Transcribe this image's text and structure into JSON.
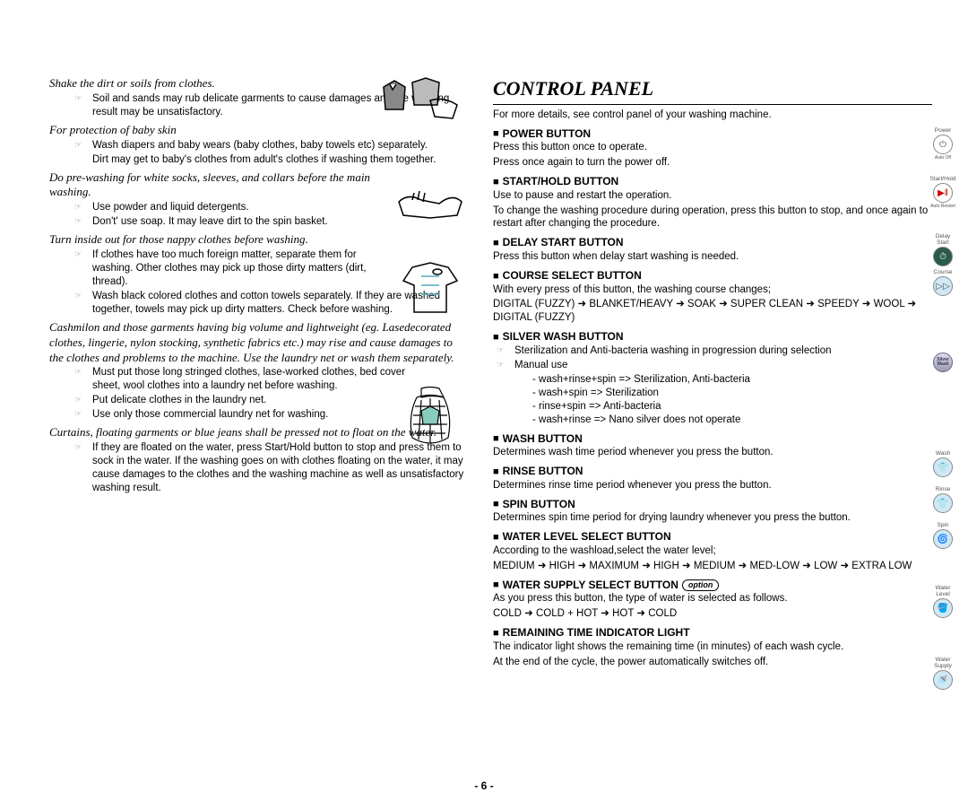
{
  "page_number": "- 6 -",
  "left": {
    "sections": [
      {
        "heading": "Shake the dirt or soils from clothes.",
        "bullets": [
          "Soil and sands may rub delicate garments to cause damages and the washing result may be unsatisfactory."
        ]
      },
      {
        "heading": "For protection of baby skin",
        "bullets": [
          "Wash diapers and baby wears (baby clothes, baby towels etc) separately."
        ],
        "after": "Dirt may get to baby's clothes from adult's clothes if washing them together."
      },
      {
        "heading": "Do pre-washing for white socks, sleeves, and collars before the main washing.",
        "bullets": [
          "Use powder and liquid detergents.",
          "Don't' use soap. It may leave dirt to the spin basket."
        ]
      },
      {
        "heading": "Turn inside out for those nappy clothes before washing.",
        "bullets": [
          "If clothes have too much foreign matter, separate them for washing. Other clothes may pick up those dirty matters (dirt, thread).",
          "Wash black colored clothes and cotton towels separately. If they are washed together, towels may pick up dirty matters. Check before washing."
        ]
      },
      {
        "heading": "Cashmilon and those garments having big volume and lightweight (eg. Lasedecorated clothes, lingerie, nylon stocking, synthetic fabrics etc.) may rise and cause damages to the clothes and problems to the machine. Use the laundry net or wash them separately.",
        "bullets": [
          "Must put those long stringed clothes, lase-worked clothes, bed cover sheet, wool clothes into a laundry net before washing.",
          "Put delicate clothes in the laundry net.",
          "Use only those commercial laundry net for washing."
        ]
      },
      {
        "heading": "Curtains, floating garments or blue jeans shall be pressed not to float on the water.",
        "bullets": [
          "If they are floated on the water, press Start/Hold button to stop and press them to sock in the water. If the washing goes on with clothes floating on the water, it may cause damages to the clothes and the washing machine as well as unsatisfactory washing result."
        ]
      }
    ]
  },
  "right": {
    "title": "CONTROL PANEL",
    "intro": "For more details, see control panel of your washing machine.",
    "buttons": [
      {
        "name": "POWER BUTTON",
        "desc": [
          "Press this button once to operate.",
          "Press once again to turn the power off."
        ]
      },
      {
        "name": "START/HOLD BUTTON",
        "desc": [
          "Use to pause and restart the operation.",
          "To change the washing procedure during operation, press this button to stop, and once again to restart after changing the procedure."
        ]
      },
      {
        "name": "DELAY START BUTTON",
        "desc": [
          "Press this button when delay start washing is needed."
        ]
      },
      {
        "name": "COURSE SELECT BUTTON",
        "desc": [
          "With every press of this button, the washing course changes;",
          "DIGITAL (FUZZY) ➜ BLANKET/HEAVY ➜ SOAK ➜ SUPER CLEAN ➜ SPEEDY ➜ WOOL ➜ DIGITAL (FUZZY)"
        ]
      },
      {
        "name": "SILVER WASH BUTTON",
        "sub_bullets": [
          "Sterilization and Anti-bacteria washing in progression during selection",
          "Manual use"
        ],
        "dashes": [
          "wash+rinse+spin => Sterilization, Anti-bacteria",
          "wash+spin => Sterilization",
          "rinse+spin => Anti-bacteria",
          "wash+rinse => Nano silver does not operate"
        ]
      },
      {
        "name": "WASH BUTTON",
        "desc": [
          "Determines wash time period whenever you press the button."
        ]
      },
      {
        "name": "RINSE BUTTON",
        "desc": [
          "Determines rinse time period whenever you press the button."
        ]
      },
      {
        "name": "SPIN BUTTON",
        "desc": [
          "Determines spin time period for drying laundry whenever you press the button."
        ]
      },
      {
        "name": "WATER LEVEL SELECT BUTTON",
        "desc": [
          "According to the washload,select the water level;",
          "MEDIUM ➜ HIGH ➜ MAXIMUM ➜ HIGH ➜ MEDIUM ➜ MED-LOW ➜ LOW ➜ EXTRA LOW"
        ]
      },
      {
        "name": "WATER SUPPLY SELECT BUTTON",
        "option": "option",
        "desc": [
          "As you press this button, the type of water is selected as follows.",
          "COLD ➜ COLD + HOT ➜ HOT ➜ COLD"
        ]
      },
      {
        "name": "REMAINING TIME INDICATOR LIGHT",
        "desc": [
          "The indicator light shows the remaining time (in minutes) of each wash cycle.",
          "At the end of the cycle, the power automatically switches off."
        ]
      }
    ]
  },
  "icons": [
    {
      "label_top": "Power",
      "label_bot": "Auto Off",
      "glyph": "⏻"
    },
    {
      "label_top": "Start/Hold",
      "label_bot": "Auto Restart",
      "glyph": "▶‖",
      "color": "#cc0000"
    },
    {
      "label_top": "Delay Start",
      "glyph": "⏱",
      "bg": "#2a5a4a",
      "fg": "#fff"
    },
    {
      "label_top": "Course",
      "glyph": "▷▷",
      "bg": "#cfe8f5"
    },
    {
      "label_top": "",
      "glyph": "Silver Wash",
      "special": "silver"
    },
    {
      "label_top": "Wash",
      "glyph": "👕",
      "bg": "#cfe8f5"
    },
    {
      "label_top": "Rinse",
      "glyph": "👕",
      "bg": "#cfe8f5"
    },
    {
      "label_top": "Spin",
      "glyph": "🌀",
      "bg": "#cfe8f5"
    },
    {
      "label_top": "Water Level",
      "glyph": "🪣",
      "bg": "#cfe8f5"
    },
    {
      "label_top": "Water Supply",
      "glyph": "🚿",
      "bg": "#cfe8f5"
    }
  ]
}
